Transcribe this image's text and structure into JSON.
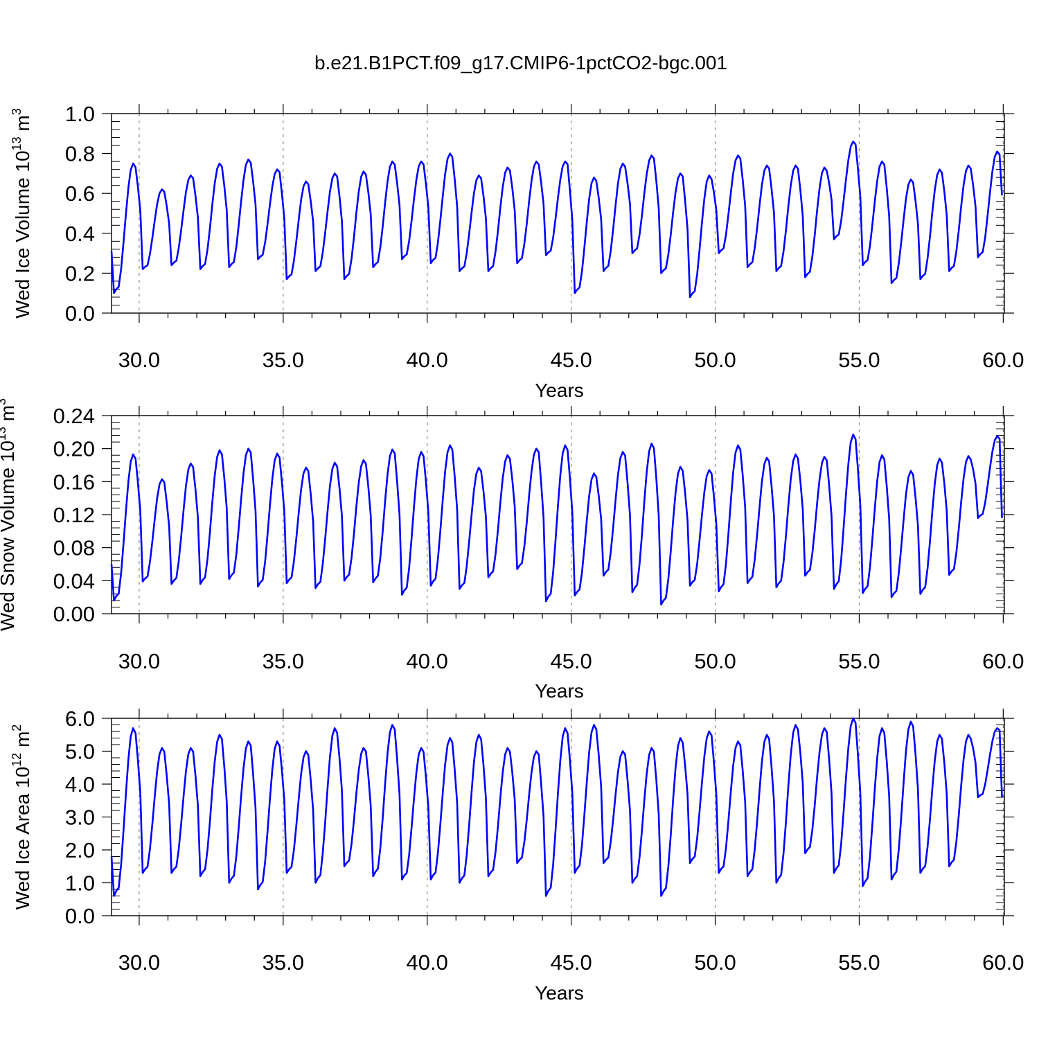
{
  "title": "b.e21.B1PCT.f09_g17.CMIP6-1pctCO2-bgc.001",
  "colors": {
    "series": "#0000ff",
    "axes": "#000000",
    "grid": "#888888"
  },
  "chart_data": [
    {
      "type": "line",
      "title": "b.e21.B1PCT.f09_g17.CMIP6-1pctCO2-bgc.001",
      "xlabel": "Years",
      "ylabel": {
        "main": "Wed Ice Volume 10",
        "exp": "13",
        "unit": " m",
        "unit_exp": "3"
      },
      "xlim": [
        29.04,
        60.04
      ],
      "ylim": [
        0,
        1.0
      ],
      "xticks": [
        30,
        35,
        40,
        45,
        50,
        55,
        60
      ],
      "xtick_labels": [
        "30.0",
        "35.0",
        "40.0",
        "45.0",
        "50.0",
        "55.0",
        "60.0"
      ],
      "yticks": [
        0,
        0.2,
        0.4,
        0.6,
        0.8,
        1.0
      ],
      "ytick_labels": [
        "0.0",
        "0.2",
        "0.4",
        "0.6",
        "0.8",
        "1.0"
      ],
      "grid": "dashed vertical at major x ticks",
      "series": [
        {
          "x_start": 29.04,
          "x_step": 0.0833333,
          "minima": [
            0.1,
            0.22,
            0.24,
            0.22,
            0.23,
            0.27,
            0.17,
            0.21,
            0.17,
            0.23,
            0.27,
            0.25,
            0.21,
            0.21,
            0.25,
            0.29,
            0.1,
            0.21,
            0.3,
            0.2,
            0.08,
            0.3,
            0.23,
            0.21,
            0.18,
            0.37,
            0.24,
            0.15,
            0.17,
            0.21,
            0.28
          ],
          "maxima": [
            0.75,
            0.62,
            0.69,
            0.75,
            0.77,
            0.72,
            0.66,
            0.7,
            0.71,
            0.76,
            0.76,
            0.8,
            0.69,
            0.73,
            0.76,
            0.76,
            0.68,
            0.75,
            0.79,
            0.7,
            0.69,
            0.79,
            0.74,
            0.74,
            0.73,
            0.86,
            0.76,
            0.67,
            0.72,
            0.74,
            0.81
          ],
          "start_value": 0.31,
          "end_value": 0.59
        }
      ]
    },
    {
      "type": "line",
      "xlabel": "Years",
      "ylabel": {
        "main": "Wed Snow Volume 10",
        "exp": "13",
        "unit": " m",
        "unit_exp": "3"
      },
      "xlim": [
        29.04,
        60.04
      ],
      "ylim": [
        0,
        0.24
      ],
      "xticks": [
        30,
        35,
        40,
        45,
        50,
        55,
        60
      ],
      "xtick_labels": [
        "30.0",
        "35.0",
        "40.0",
        "45.0",
        "50.0",
        "55.0",
        "60.0"
      ],
      "yticks": [
        0,
        0.04,
        0.08,
        0.12,
        0.16,
        0.2,
        0.24
      ],
      "ytick_labels": [
        "0.00",
        "0.04",
        "0.08",
        "0.12",
        "0.16",
        "0.20",
        "0.24"
      ],
      "grid": "dashed vertical at major x ticks",
      "series": [
        {
          "x_start": 29.04,
          "x_step": 0.0833333,
          "minima": [
            0.016,
            0.039,
            0.036,
            0.036,
            0.042,
            0.033,
            0.037,
            0.031,
            0.04,
            0.038,
            0.023,
            0.034,
            0.03,
            0.044,
            0.054,
            0.015,
            0.022,
            0.046,
            0.026,
            0.011,
            0.034,
            0.027,
            0.037,
            0.032,
            0.046,
            0.03,
            0.025,
            0.02,
            0.024,
            0.047,
            0.116
          ],
          "maxima": [
            0.193,
            0.163,
            0.182,
            0.198,
            0.2,
            0.194,
            0.177,
            0.183,
            0.186,
            0.199,
            0.196,
            0.204,
            0.177,
            0.192,
            0.2,
            0.204,
            0.17,
            0.196,
            0.206,
            0.178,
            0.174,
            0.204,
            0.189,
            0.193,
            0.19,
            0.217,
            0.192,
            0.173,
            0.188,
            0.191,
            0.215
          ],
          "start_value": 0.06,
          "end_value": 0.116
        }
      ]
    },
    {
      "type": "line",
      "xlabel": "Years",
      "ylabel": {
        "main": "Wed Ice Area 10",
        "exp": "12",
        "unit": " m",
        "unit_exp": "2"
      },
      "xlim": [
        29.04,
        60.04
      ],
      "ylim": [
        0,
        6.0
      ],
      "xticks": [
        30,
        35,
        40,
        45,
        50,
        55,
        60
      ],
      "xtick_labels": [
        "30.0",
        "35.0",
        "40.0",
        "45.0",
        "50.0",
        "55.0",
        "60.0"
      ],
      "yticks": [
        0,
        1,
        2,
        3,
        4,
        5,
        6
      ],
      "ytick_labels": [
        "0.0",
        "1.0",
        "2.0",
        "3.0",
        "4.0",
        "5.0",
        "6.0"
      ],
      "grid": "dashed vertical at major x ticks",
      "series": [
        {
          "x_start": 29.04,
          "x_step": 0.0833333,
          "minima": [
            0.6,
            1.3,
            1.3,
            1.2,
            1.0,
            0.8,
            1.3,
            1.0,
            1.5,
            1.2,
            1.1,
            1.1,
            1.0,
            1.2,
            1.6,
            0.6,
            1.3,
            1.6,
            1.0,
            0.6,
            1.6,
            1.3,
            1.2,
            1.0,
            1.9,
            1.3,
            0.9,
            1.1,
            1.3,
            1.5,
            3.6
          ],
          "maxima": [
            5.7,
            5.1,
            5.1,
            5.5,
            5.3,
            5.3,
            5.0,
            5.7,
            5.1,
            5.8,
            5.1,
            5.4,
            5.5,
            5.1,
            5.0,
            5.7,
            5.8,
            5.0,
            5.1,
            5.4,
            5.6,
            5.3,
            5.5,
            5.8,
            5.7,
            6.0,
            5.7,
            5.9,
            5.5,
            5.5,
            5.7
          ],
          "start_value": 1.8,
          "end_value": 3.6
        }
      ]
    }
  ]
}
